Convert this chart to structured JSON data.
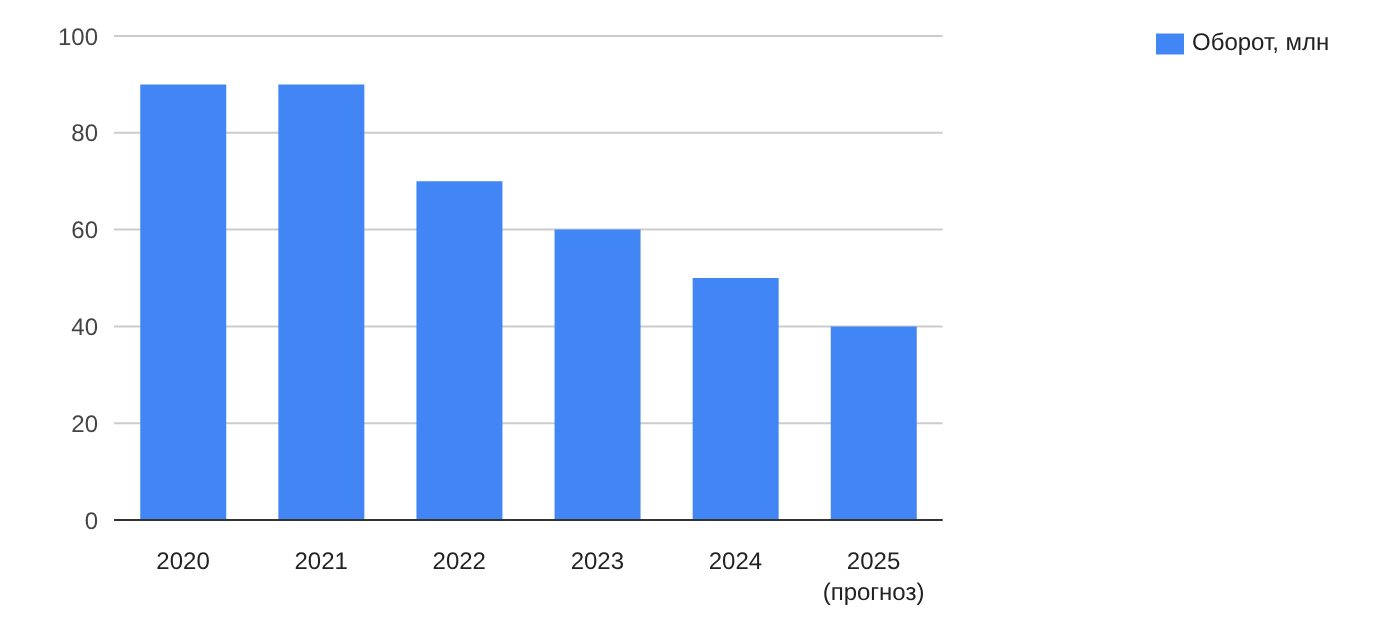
{
  "chart_data": {
    "type": "bar",
    "categories": [
      "2020",
      "2021",
      "2022",
      "2023",
      "2024",
      "2025\n(прогноз)"
    ],
    "series": [
      {
        "name": "Оборот, млн",
        "color": "#4285f4",
        "values": [
          90,
          90,
          70,
          60,
          50,
          40
        ]
      }
    ],
    "ylim": [
      0,
      100
    ],
    "yticks": [
      0,
      20,
      40,
      60,
      80,
      100
    ],
    "grid": "y",
    "legend": "top right"
  }
}
